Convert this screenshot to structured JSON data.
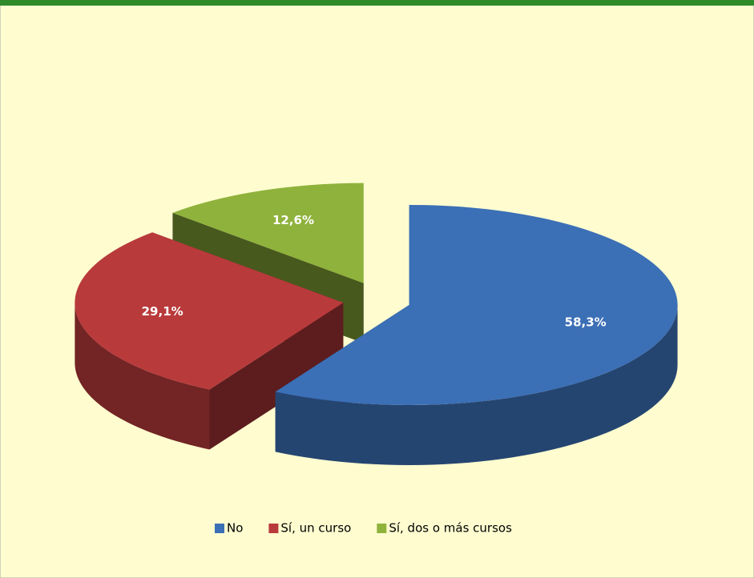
{
  "chart_data": {
    "type": "pie",
    "categories": [
      "No",
      "Sí, un curso",
      "Sí, dos o más cursos"
    ],
    "values": [
      58.3,
      29.1,
      12.6
    ],
    "value_labels": [
      "58,3%",
      "29,1%",
      "12,6%"
    ],
    "colors": [
      "#3b6fb6",
      "#b93a3b",
      "#8fb23c"
    ],
    "legend": "bottom"
  }
}
